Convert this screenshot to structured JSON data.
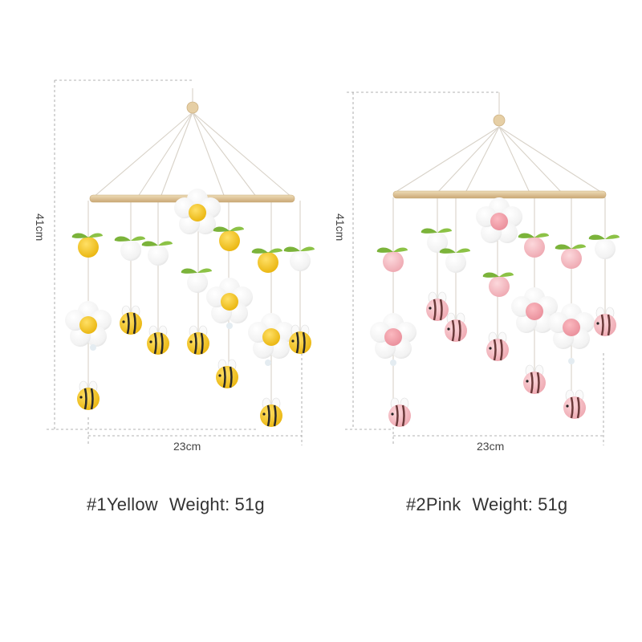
{
  "products": [
    {
      "variant": "#1Yellow",
      "weight_label": "Weight:",
      "weight": "51g",
      "height_label": "41cm",
      "width_label": "23cm",
      "accent_color": "#f2c21a"
    },
    {
      "variant": "#2Pink",
      "weight_label": "Weight:",
      "weight": "51g",
      "height_label": "41cm",
      "width_label": "23cm",
      "accent_color": "#f3b8bf"
    }
  ],
  "colors": {
    "wood": "#dcc59c",
    "felt_white": "#ffffff",
    "leaf_green": "#7bb33a",
    "yellow": "#f2c21a",
    "orange": "#f5b21d",
    "pink": "#f3b8bf",
    "guide_line": "#9a9a9a"
  }
}
